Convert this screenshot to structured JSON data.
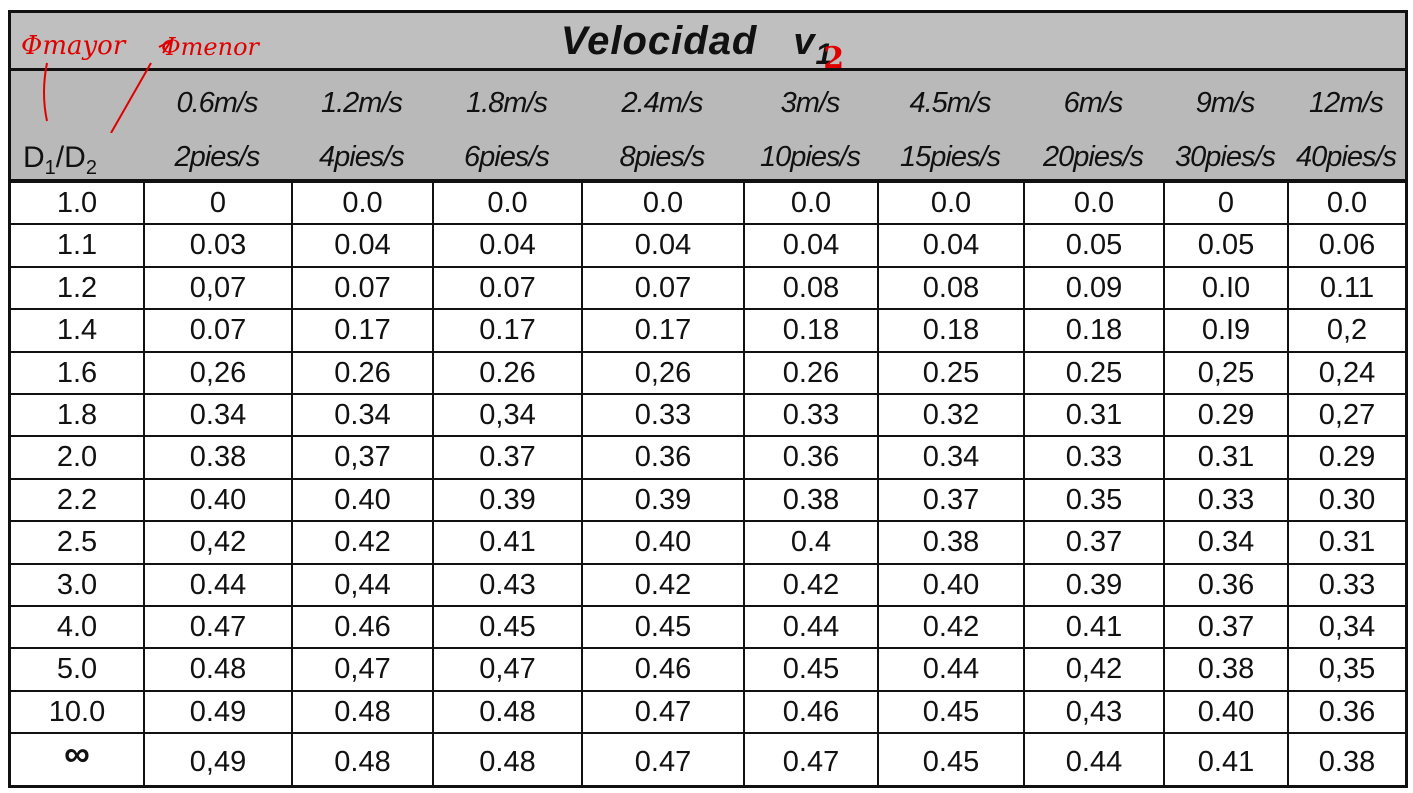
{
  "title": {
    "text": "Velocidad",
    "symbol": "v",
    "subscript": "1",
    "handwritten_subscript": "2"
  },
  "annotations": {
    "mayor": "Φmayor",
    "menor": "Φmenor"
  },
  "corner_label": {
    "d1": "D",
    "s1": "1",
    "slash": "/",
    "d2": "D",
    "s2": "2"
  },
  "columns": [
    {
      "metric": "0.6m/s",
      "imperial": "2pies/s"
    },
    {
      "metric": "1.2m/s",
      "imperial": "4pies/s"
    },
    {
      "metric": "1.8m/s",
      "imperial": "6pies/s"
    },
    {
      "metric": "2.4m/s",
      "imperial": "8pies/s"
    },
    {
      "metric": "3m/s",
      "imperial": "10pies/s"
    },
    {
      "metric": "4.5m/s",
      "imperial": "15pies/s"
    },
    {
      "metric": "6m/s",
      "imperial": "20pies/s"
    },
    {
      "metric": "9m/s",
      "imperial": "30pies/s"
    },
    {
      "metric": "12m/s",
      "imperial": "40pies/s"
    }
  ],
  "rows": [
    {
      "ratio": "1.0",
      "values": [
        "0",
        "0.0",
        "0.0",
        "0.0",
        "0.0",
        "0.0",
        "0.0",
        "0",
        "0.0"
      ]
    },
    {
      "ratio": "1.1",
      "values": [
        "0.03",
        "0.04",
        "0.04",
        "0.04",
        "0.04",
        "0.04",
        "0.05",
        "0.05",
        "0.06"
      ]
    },
    {
      "ratio": "1.2",
      "values": [
        "0,07",
        "0.07",
        "0.07",
        "0.07",
        "0.08",
        "0.08",
        "0.09",
        "0.I0",
        "0.11"
      ]
    },
    {
      "ratio": "1.4",
      "values": [
        "0.07",
        "0.17",
        "0.17",
        "0.17",
        "0.18",
        "0.18",
        "0.18",
        "0.I9",
        "0,2"
      ]
    },
    {
      "ratio": "1.6",
      "values": [
        "0,26",
        "0.26",
        "0.26",
        "0,26",
        "0.26",
        "0.25",
        "0.25",
        "0,25",
        "0,24"
      ]
    },
    {
      "ratio": "1.8",
      "values": [
        "0.34",
        "0.34",
        "0,34",
        "0.33",
        "0.33",
        "0.32",
        "0.31",
        "0.29",
        "0,27"
      ]
    },
    {
      "ratio": "2.0",
      "values": [
        "0.38",
        "0,37",
        "0.37",
        "0.36",
        "0.36",
        "0.34",
        "0.33",
        "0.31",
        "0.29"
      ]
    },
    {
      "ratio": "2.2",
      "values": [
        "0.40",
        "0.40",
        "0.39",
        "0.39",
        "0.38",
        "0.37",
        "0.35",
        "0.33",
        "0.30"
      ]
    },
    {
      "ratio": "2.5",
      "values": [
        "0,42",
        "0.42",
        "0.41",
        "0.40",
        "0.4",
        "0.38",
        "0.37",
        "0.34",
        "0.31"
      ]
    },
    {
      "ratio": "3.0",
      "values": [
        "0.44",
        "0,44",
        "0.43",
        "0.42",
        "0.42",
        "0.40",
        "0.39",
        "0.36",
        "0.33"
      ]
    },
    {
      "ratio": "4.0",
      "values": [
        "0.47",
        "0.46",
        "0.45",
        "0.45",
        "0.44",
        "0.42",
        "0.41",
        "0.37",
        "0,34"
      ]
    },
    {
      "ratio": "5.0",
      "values": [
        "0.48",
        "0,47",
        "0,47",
        "0.46",
        "0.45",
        "0.44",
        "0,42",
        "0.38",
        "0,35"
      ]
    },
    {
      "ratio": "10.0",
      "values": [
        "0.49",
        "0.48",
        "0.48",
        "0.47",
        "0.46",
        "0.45",
        "0,43",
        "0.40",
        "0.36"
      ]
    },
    {
      "ratio": "∞",
      "values": [
        "0,49",
        "0.48",
        "0.48",
        "0.47",
        "0.47",
        "0.45",
        "0.44",
        "0.41",
        "0.38"
      ]
    }
  ]
}
